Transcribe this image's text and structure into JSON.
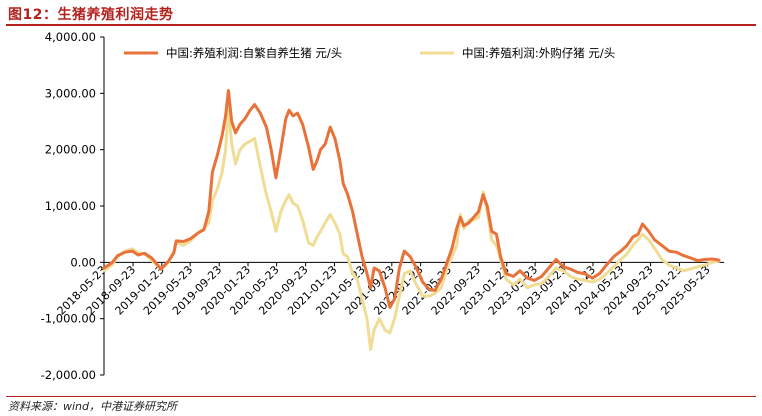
{
  "header": {
    "title": "图12：生猪养殖利润走势"
  },
  "footer": {
    "source": "资料来源：wind，中港证券研究所"
  },
  "chart_data": {
    "type": "line",
    "title": "图12：生猪养殖利润走势",
    "xlabel": "",
    "ylabel": "",
    "ylim": [
      -2000,
      4000
    ],
    "yticks": [
      -2000,
      -1000,
      0,
      1000,
      2000,
      3000,
      4000
    ],
    "ytick_labels": [
      "-2,000.00",
      "-1,000.00",
      "0.00",
      "1,000.00",
      "2,000.00",
      "3,000.00",
      "4,000.00"
    ],
    "xlim": [
      "2018-05-23",
      "2025-07-31"
    ],
    "xtick_labels": [
      "2018-05-23",
      "2018-09-23",
      "2019-01-23",
      "2019-05-23",
      "2019-09-23",
      "2020-01-23",
      "2020-05-23",
      "2020-09-23",
      "2021-01-23",
      "2021-05-23",
      "2021-09-23",
      "2022-01-23",
      "2022-05-23",
      "2022-09-23",
      "2023-01-23",
      "2023-05-23",
      "2023-09-23",
      "2024-01-23",
      "2024-05-23",
      "2024-09-23",
      "2025-01-23",
      "2025-05-23"
    ],
    "grid": false,
    "legend_position": "top",
    "colors": {
      "series1": "#e8723a",
      "series2": "#f0dc94",
      "accent": "#b5221e"
    },
    "series": [
      {
        "name": "中国:养殖利润:自繁自养生猪 元/头",
        "points": [
          [
            "2018-05-23",
            -100
          ],
          [
            "2018-06-25",
            -10
          ],
          [
            "2018-07-20",
            120
          ],
          [
            "2018-08-20",
            180
          ],
          [
            "2018-09-20",
            200
          ],
          [
            "2018-10-15",
            130
          ],
          [
            "2018-11-10",
            160
          ],
          [
            "2018-12-10",
            80
          ],
          [
            "2019-01-20",
            -120
          ],
          [
            "2019-02-20",
            20
          ],
          [
            "2019-03-15",
            170
          ],
          [
            "2019-03-25",
            380
          ],
          [
            "2019-04-25",
            370
          ],
          [
            "2019-05-25",
            420
          ],
          [
            "2019-06-25",
            520
          ],
          [
            "2019-07-20",
            580
          ],
          [
            "2019-08-10",
            900
          ],
          [
            "2019-08-25",
            1600
          ],
          [
            "2019-09-15",
            1900
          ],
          [
            "2019-10-05",
            2250
          ],
          [
            "2019-10-20",
            2600
          ],
          [
            "2019-11-01",
            3050
          ],
          [
            "2019-11-15",
            2500
          ],
          [
            "2019-12-01",
            2300
          ],
          [
            "2019-12-20",
            2450
          ],
          [
            "2020-01-10",
            2550
          ],
          [
            "2020-02-01",
            2700
          ],
          [
            "2020-02-20",
            2800
          ],
          [
            "2020-03-15",
            2650
          ],
          [
            "2020-04-10",
            2400
          ],
          [
            "2020-04-30",
            2000
          ],
          [
            "2020-05-20",
            1500
          ],
          [
            "2020-06-10",
            2000
          ],
          [
            "2020-07-01",
            2550
          ],
          [
            "2020-07-15",
            2700
          ],
          [
            "2020-08-01",
            2600
          ],
          [
            "2020-08-20",
            2650
          ],
          [
            "2020-09-10",
            2450
          ],
          [
            "2020-10-05",
            2050
          ],
          [
            "2020-10-25",
            1650
          ],
          [
            "2020-11-10",
            1800
          ],
          [
            "2020-11-25",
            2000
          ],
          [
            "2020-12-15",
            2100
          ],
          [
            "2021-01-05",
            2400
          ],
          [
            "2021-01-25",
            2200
          ],
          [
            "2021-02-15",
            1800
          ],
          [
            "2021-03-01",
            1400
          ],
          [
            "2021-03-20",
            1200
          ],
          [
            "2021-04-10",
            900
          ],
          [
            "2021-04-30",
            500
          ],
          [
            "2021-05-20",
            100
          ],
          [
            "2021-06-10",
            -200
          ],
          [
            "2021-06-25",
            -450
          ],
          [
            "2021-07-10",
            -100
          ],
          [
            "2021-08-01",
            -150
          ],
          [
            "2021-08-25",
            -450
          ],
          [
            "2021-09-15",
            -800
          ],
          [
            "2021-10-05",
            -650
          ],
          [
            "2021-10-25",
            -100
          ],
          [
            "2021-11-15",
            200
          ],
          [
            "2021-12-10",
            100
          ],
          [
            "2022-01-05",
            -100
          ],
          [
            "2022-02-01",
            -350
          ],
          [
            "2022-03-01",
            -480
          ],
          [
            "2022-03-25",
            -500
          ],
          [
            "2022-04-20",
            -300
          ],
          [
            "2022-05-15",
            0
          ],
          [
            "2022-06-05",
            250
          ],
          [
            "2022-06-25",
            600
          ],
          [
            "2022-07-10",
            800
          ],
          [
            "2022-07-25",
            650
          ],
          [
            "2022-08-15",
            700
          ],
          [
            "2022-09-05",
            800
          ],
          [
            "2022-09-25",
            900
          ],
          [
            "2022-10-15",
            1200
          ],
          [
            "2022-11-01",
            1000
          ],
          [
            "2022-11-20",
            550
          ],
          [
            "2022-12-10",
            500
          ],
          [
            "2022-12-28",
            100
          ],
          [
            "2023-01-20",
            -200
          ],
          [
            "2023-02-20",
            -250
          ],
          [
            "2023-03-20",
            -150
          ],
          [
            "2023-04-20",
            -280
          ],
          [
            "2023-05-20",
            -320
          ],
          [
            "2023-06-20",
            -250
          ],
          [
            "2023-07-20",
            -100
          ],
          [
            "2023-08-20",
            50
          ],
          [
            "2023-09-20",
            -80
          ],
          [
            "2023-10-20",
            -120
          ],
          [
            "2023-11-20",
            -180
          ],
          [
            "2023-12-20",
            -200
          ],
          [
            "2024-01-20",
            -280
          ],
          [
            "2024-02-20",
            -200
          ],
          [
            "2024-03-20",
            -50
          ],
          [
            "2024-04-20",
            100
          ],
          [
            "2024-05-20",
            200
          ],
          [
            "2024-06-15",
            300
          ],
          [
            "2024-07-10",
            450
          ],
          [
            "2024-08-01",
            500
          ],
          [
            "2024-08-20",
            680
          ],
          [
            "2024-09-15",
            550
          ],
          [
            "2024-10-10",
            400
          ],
          [
            "2024-11-10",
            300
          ],
          [
            "2024-12-10",
            200
          ],
          [
            "2025-01-10",
            180
          ],
          [
            "2025-02-10",
            120
          ],
          [
            "2025-03-10",
            80
          ],
          [
            "2025-04-10",
            30
          ],
          [
            "2025-05-10",
            50
          ],
          [
            "2025-06-10",
            60
          ],
          [
            "2025-07-10",
            40
          ]
        ]
      },
      {
        "name": "中国:养殖利润:外购仔猪 元/头",
        "points": [
          [
            "2018-05-23",
            -150
          ],
          [
            "2018-06-25",
            -50
          ],
          [
            "2018-07-20",
            100
          ],
          [
            "2018-08-20",
            200
          ],
          [
            "2018-09-20",
            240
          ],
          [
            "2018-10-15",
            170
          ],
          [
            "2018-11-10",
            150
          ],
          [
            "2018-12-10",
            40
          ],
          [
            "2019-01-20",
            -120
          ],
          [
            "2019-02-20",
            0
          ],
          [
            "2019-03-15",
            200
          ],
          [
            "2019-03-25",
            350
          ],
          [
            "2019-04-25",
            300
          ],
          [
            "2019-05-25",
            380
          ],
          [
            "2019-06-25",
            520
          ],
          [
            "2019-07-20",
            600
          ],
          [
            "2019-08-10",
            700
          ],
          [
            "2019-08-25",
            1100
          ],
          [
            "2019-09-15",
            1300
          ],
          [
            "2019-10-05",
            1600
          ],
          [
            "2019-10-20",
            2000
          ],
          [
            "2019-11-01",
            2750
          ],
          [
            "2019-11-15",
            2100
          ],
          [
            "2019-12-01",
            1750
          ],
          [
            "2019-12-20",
            2000
          ],
          [
            "2020-01-10",
            2100
          ],
          [
            "2020-02-01",
            2150
          ],
          [
            "2020-02-20",
            2200
          ],
          [
            "2020-03-15",
            1700
          ],
          [
            "2020-04-10",
            1200
          ],
          [
            "2020-04-30",
            900
          ],
          [
            "2020-05-20",
            550
          ],
          [
            "2020-06-10",
            900
          ],
          [
            "2020-07-01",
            1100
          ],
          [
            "2020-07-15",
            1200
          ],
          [
            "2020-08-01",
            1050
          ],
          [
            "2020-08-20",
            1000
          ],
          [
            "2020-09-10",
            750
          ],
          [
            "2020-10-05",
            350
          ],
          [
            "2020-10-25",
            300
          ],
          [
            "2020-11-10",
            450
          ],
          [
            "2020-11-25",
            550
          ],
          [
            "2020-12-15",
            700
          ],
          [
            "2021-01-05",
            850
          ],
          [
            "2021-01-25",
            700
          ],
          [
            "2021-02-15",
            500
          ],
          [
            "2021-03-01",
            150
          ],
          [
            "2021-03-20",
            100
          ],
          [
            "2021-04-10",
            -200
          ],
          [
            "2021-04-30",
            -300
          ],
          [
            "2021-05-20",
            -650
          ],
          [
            "2021-06-10",
            -1000
          ],
          [
            "2021-06-25",
            -1550
          ],
          [
            "2021-07-10",
            -1200
          ],
          [
            "2021-08-01",
            -1000
          ],
          [
            "2021-08-25",
            -1200
          ],
          [
            "2021-09-15",
            -1250
          ],
          [
            "2021-10-05",
            -1000
          ],
          [
            "2021-10-25",
            -600
          ],
          [
            "2021-11-15",
            -200
          ],
          [
            "2021-12-10",
            -150
          ],
          [
            "2022-01-05",
            -400
          ],
          [
            "2022-02-01",
            -600
          ],
          [
            "2022-03-01",
            -600
          ],
          [
            "2022-03-25",
            -550
          ],
          [
            "2022-04-20",
            -450
          ],
          [
            "2022-05-15",
            -100
          ],
          [
            "2022-06-05",
            100
          ],
          [
            "2022-06-25",
            300
          ],
          [
            "2022-07-10",
            850
          ],
          [
            "2022-07-25",
            600
          ],
          [
            "2022-08-15",
            750
          ],
          [
            "2022-09-05",
            750
          ],
          [
            "2022-09-25",
            800
          ],
          [
            "2022-10-15",
            1250
          ],
          [
            "2022-11-01",
            900
          ],
          [
            "2022-11-20",
            400
          ],
          [
            "2022-12-10",
            300
          ],
          [
            "2022-12-28",
            50
          ],
          [
            "2023-01-20",
            -300
          ],
          [
            "2023-02-20",
            -400
          ],
          [
            "2023-03-20",
            -300
          ],
          [
            "2023-04-20",
            -450
          ],
          [
            "2023-05-20",
            -400
          ],
          [
            "2023-06-20",
            -380
          ],
          [
            "2023-07-20",
            -250
          ],
          [
            "2023-08-20",
            -100
          ],
          [
            "2023-09-20",
            -150
          ],
          [
            "2023-10-20",
            -250
          ],
          [
            "2023-11-20",
            -300
          ],
          [
            "2023-12-20",
            -320
          ],
          [
            "2024-01-20",
            -350
          ],
          [
            "2024-02-20",
            -300
          ],
          [
            "2024-03-20",
            -200
          ],
          [
            "2024-04-20",
            -80
          ],
          [
            "2024-05-20",
            50
          ],
          [
            "2024-06-15",
            150
          ],
          [
            "2024-07-10",
            300
          ],
          [
            "2024-08-01",
            400
          ],
          [
            "2024-08-20",
            500
          ],
          [
            "2024-09-15",
            400
          ],
          [
            "2024-10-10",
            250
          ],
          [
            "2024-11-10",
            50
          ],
          [
            "2024-12-10",
            -50
          ],
          [
            "2025-01-10",
            -100
          ],
          [
            "2025-02-10",
            -150
          ],
          [
            "2025-03-10",
            -120
          ],
          [
            "2025-04-10",
            -80
          ],
          [
            "2025-05-10",
            -50
          ],
          [
            "2025-06-10",
            0
          ],
          [
            "2025-07-10",
            20
          ]
        ]
      }
    ]
  }
}
